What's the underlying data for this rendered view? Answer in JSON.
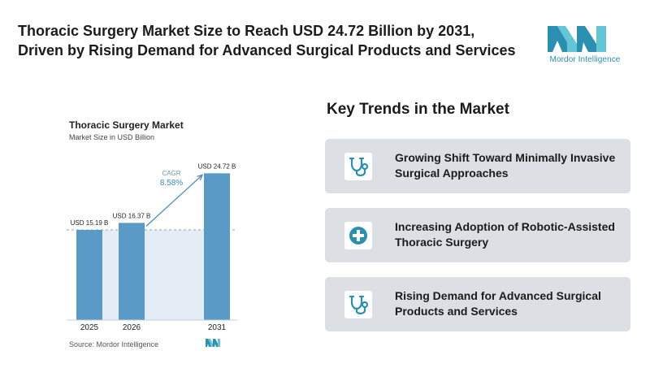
{
  "headline": "Thoracic Surgery Market Size to Reach USD 24.72 Billion by 2031, Driven by Rising Demand for Advanced Surgical Products and Services",
  "brand": {
    "name": "Mordor Intelligence",
    "primary_color": "#2a8fb0",
    "secondary_color": "#63c5d6"
  },
  "chart_data": {
    "type": "bar",
    "title": "Thoracic Surgery Market",
    "subtitle": "Market Size in USD Billion",
    "categories": [
      "2025",
      "2026",
      "2031"
    ],
    "values": [
      15.19,
      16.37,
      24.72
    ],
    "value_labels": [
      "USD 15.19 B",
      "USD 16.37 B",
      "USD 24.72 B"
    ],
    "unit": "USD Billion",
    "ylim": [
      0,
      26
    ],
    "grid": false,
    "bar_color": "#5a9ac6",
    "annotation": {
      "label": "CAGR",
      "value": "8.58%",
      "from": "2026",
      "to": "2031"
    },
    "source": "Source: Mordor Intelligence"
  },
  "trends": {
    "title": "Key Trends in the Market",
    "items": [
      {
        "text": "Growing Shift Toward Minimally Invasive Surgical Approaches",
        "icon": "stethoscope-icon"
      },
      {
        "text": "Increasing Adoption of Robotic-Assisted Thoracic Surgery",
        "icon": "medical-plus-icon"
      },
      {
        "text": "Rising Demand for Advanced Surgical Products and Services",
        "icon": "stethoscope-icon"
      }
    ]
  }
}
